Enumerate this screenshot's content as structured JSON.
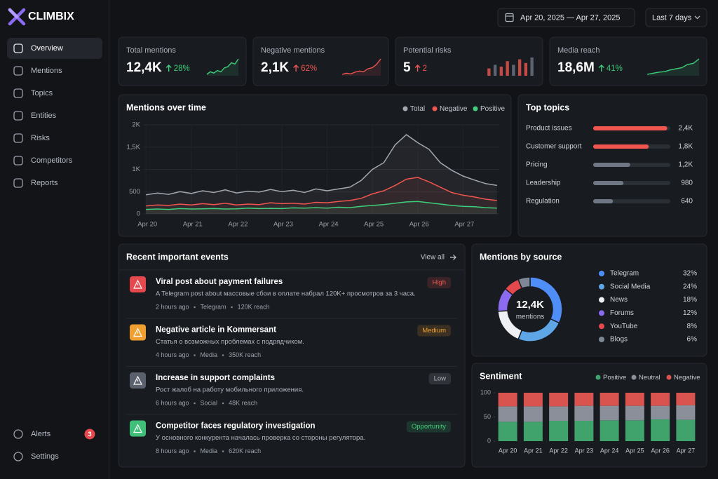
{
  "brand": "CLIMBIX",
  "nav": [
    {
      "label": "Overview",
      "selected": true
    },
    {
      "label": "Mentions"
    },
    {
      "label": "Topics"
    },
    {
      "label": "Entities"
    },
    {
      "label": "Risks"
    },
    {
      "label": "Competitors"
    },
    {
      "label": "Reports"
    }
  ],
  "nav_bottom": [
    {
      "label": "Alerts",
      "badge": 3
    },
    {
      "label": "Settings"
    }
  ],
  "date_range": "Apr 20, 2025 — Apr 27, 2025",
  "period": "Last 7 days",
  "kpis": [
    {
      "label": "Total mentions",
      "value": "12,4K",
      "change": "28%",
      "trend": "up",
      "color": "#3ecf7a",
      "spark_type": "line",
      "spark": [
        4,
        5,
        4.5,
        5.5,
        5,
        6.5,
        7,
        8.5,
        8,
        10
      ]
    },
    {
      "label": "Negative mentions",
      "value": "2,1K",
      "change": "62%",
      "trend": "up",
      "color": "#f0564f",
      "spark_type": "line",
      "spark": [
        3,
        3.5,
        3.2,
        4,
        4.5,
        4.2,
        5.5,
        6,
        7.5,
        10
      ]
    },
    {
      "label": "Potential risks",
      "value": "5",
      "change": "2",
      "trend": "up",
      "color": "#f0564f",
      "spark_type": "bar",
      "spark": [
        4,
        6,
        5,
        8,
        6,
        9,
        7,
        10
      ]
    },
    {
      "label": "Media reach",
      "value": "18,6M",
      "change": "41%",
      "trend": "up",
      "color": "#3ecf7a",
      "spark_type": "line",
      "spark": [
        3,
        3.5,
        4,
        4.2,
        5,
        5.5,
        6,
        7.5,
        8,
        10
      ]
    }
  ],
  "mentions_chart": {
    "type": "line",
    "title": "Mentions over time",
    "x": [
      0,
      0.25,
      0.5,
      0.75,
      1,
      1.25,
      1.5,
      1.75,
      2,
      2.25,
      2.5,
      2.75,
      3,
      3.25,
      3.5,
      3.75,
      4,
      4.25,
      4.5,
      4.75,
      5,
      5.25,
      5.5,
      5.75,
      6,
      6.25,
      6.5,
      6.75,
      7,
      7.25,
      7.5,
      7.75
    ],
    "xlim": [
      -0.05,
      7.8
    ],
    "xticks": [
      {
        "value": 0,
        "label": "Apr 20"
      },
      {
        "value": 1,
        "label": "Apr 21"
      },
      {
        "value": 2,
        "label": "Apr 22"
      },
      {
        "value": 3,
        "label": "Apr 23"
      },
      {
        "value": 4,
        "label": "Apr 24"
      },
      {
        "value": 5,
        "label": "Apr 25"
      },
      {
        "value": 6,
        "label": "Apr 26"
      },
      {
        "value": 7,
        "label": "Apr 27"
      }
    ],
    "ylim": [
      0,
      2000
    ],
    "yticks": [
      0,
      500,
      {
        "value": 1000,
        "label": "1K"
      },
      {
        "value": 1500,
        "label": "1,5K"
      },
      {
        "value": 2000,
        "label": "2K"
      }
    ],
    "grid": true,
    "series": [
      {
        "name": "Total",
        "color": "#a3a8b0",
        "values": [
          430,
          470,
          440,
          500,
          460,
          520,
          480,
          540,
          470,
          510,
          490,
          550,
          500,
          530,
          480,
          560,
          520,
          560,
          600,
          750,
          1000,
          1150,
          1550,
          1780,
          1600,
          1450,
          1150,
          980,
          850,
          760,
          680,
          640
        ]
      },
      {
        "name": "Negative",
        "color": "#f0564f",
        "values": [
          180,
          200,
          190,
          220,
          200,
          230,
          210,
          240,
          200,
          220,
          210,
          250,
          230,
          240,
          220,
          260,
          250,
          280,
          300,
          350,
          450,
          520,
          640,
          780,
          820,
          720,
          600,
          480,
          420,
          380,
          330,
          300
        ]
      },
      {
        "name": "Positive",
        "color": "#3ecf7a",
        "values": [
          100,
          110,
          100,
          120,
          110,
          115,
          120,
          110,
          115,
          130,
          120,
          125,
          120,
          135,
          130,
          140,
          130,
          150,
          140,
          170,
          190,
          210,
          240,
          270,
          280,
          250,
          220,
          190,
          170,
          160,
          140,
          130
        ]
      }
    ]
  },
  "top_topics": {
    "type": "bar",
    "horizontal": true,
    "title": "Top topics",
    "categories": [
      "Product issues",
      "Customer support",
      "Pricing",
      "Leadership",
      "Regulation"
    ],
    "values": [
      2400,
      1800,
      1200,
      980,
      640
    ],
    "value_labels": [
      "2,4K",
      "1,8K",
      "1,2K",
      "980",
      "640"
    ],
    "colors": [
      "#f0564f",
      "#f0564f",
      "#6f7785",
      "#6f7785",
      "#6f7785"
    ],
    "xlim": [
      0,
      2500
    ]
  },
  "events": {
    "title": "Recent important events",
    "view_all": "View all",
    "items": [
      {
        "title": "Viral post about payment failures",
        "description": "A Telegram post about массовые сбои в оплате набрал 120K+ просмотров за 3 часа.",
        "time": "2 hours ago",
        "source": "Telegram",
        "reach": "120K reach",
        "priority": "High",
        "priority_color": "#f0564f",
        "icon_color": "#e5484d"
      },
      {
        "title": "Negative article in Kommersant",
        "description": "Статья о возможных проблемах с подрядчиком.",
        "time": "4 hours ago",
        "source": "Media",
        "reach": "350K reach",
        "priority": "Medium",
        "priority_color": "#f0a030",
        "icon_color": "#f0a030"
      },
      {
        "title": "Increase in support complaints",
        "description": "Рост жалоб на работу мобильного приложения.",
        "time": "6 hours ago",
        "source": "Social",
        "reach": "48K reach",
        "priority": "Low",
        "priority_color": "#b0b5bf",
        "icon_color": "#5b616c"
      },
      {
        "title": "Competitor faces regulatory investigation",
        "description": "У основного конкурента началась проверка со стороны регулятора.",
        "time": "8 hours ago",
        "source": "Media",
        "reach": "620K reach",
        "priority": "Opportunity",
        "priority_color": "#3ecf7a",
        "icon_color": "#3fbf78"
      }
    ]
  },
  "sources": {
    "type": "pie",
    "title": "Mentions by source",
    "categories": [
      "Telegram",
      "Social Media",
      "News",
      "Forums",
      "YouTube",
      "Blogs"
    ],
    "values": [
      32,
      24,
      18,
      12,
      8,
      6
    ],
    "value_labels": [
      "32%",
      "24%",
      "18%",
      "12%",
      "8%",
      "6%"
    ],
    "colors": [
      "#4f8ef7",
      "#5ea6e6",
      "#eef0f3",
      "#8b6cf0",
      "#e5484d",
      "#7d8796"
    ],
    "center_value": "12,4K",
    "center_label": "mentions"
  },
  "sentiment": {
    "type": "bar",
    "stacked": true,
    "title": "Sentiment",
    "categories": [
      "Apr 20",
      "Apr 21",
      "Apr 22",
      "Apr 23",
      "Apr 24",
      "Apr 25",
      "Apr 26",
      "Apr 27"
    ],
    "ylim": [
      0,
      100
    ],
    "yticks": [
      0,
      50,
      100
    ],
    "series": [
      {
        "name": "Positive",
        "color": "#3fa36b",
        "values": [
          40,
          40,
          42,
          42,
          43,
          43,
          45,
          44
        ]
      },
      {
        "name": "Neutral",
        "color": "#8a8f99",
        "values": [
          32,
          32,
          30,
          31,
          30,
          30,
          28,
          30
        ]
      },
      {
        "name": "Negative",
        "color": "#d9534f",
        "values": [
          28,
          28,
          28,
          27,
          27,
          27,
          27,
          26
        ]
      }
    ]
  }
}
